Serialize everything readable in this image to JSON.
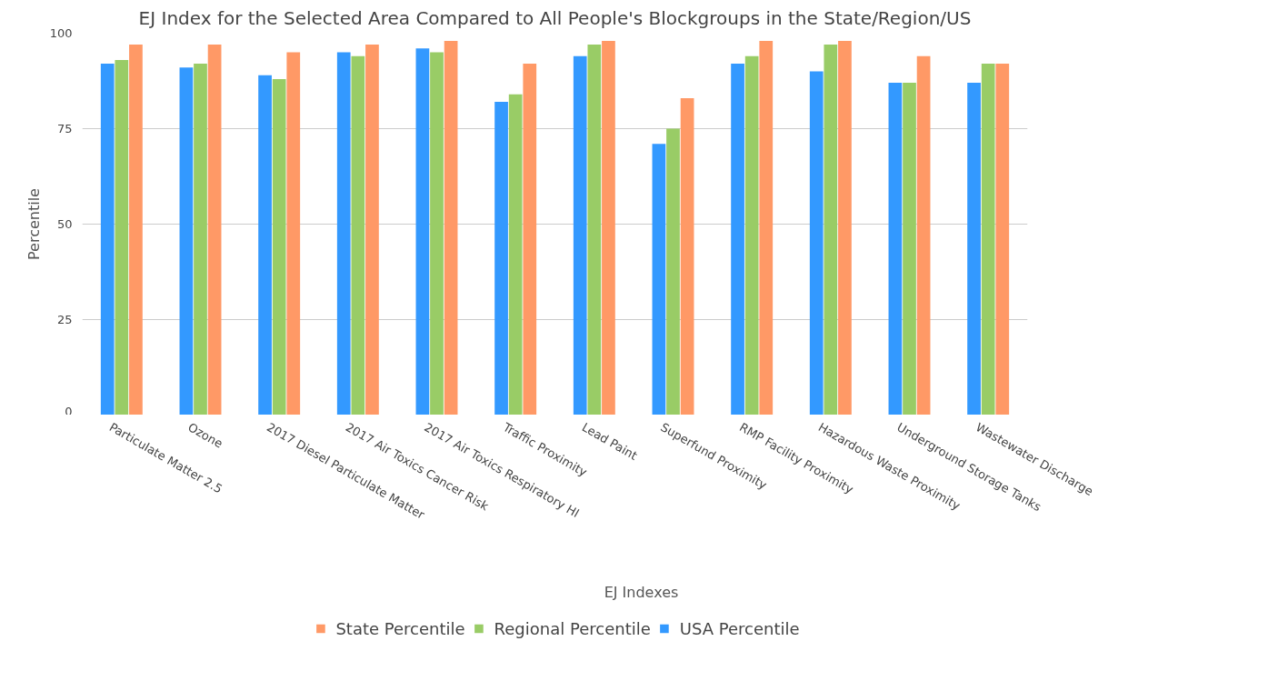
{
  "chart_data": {
    "type": "bar",
    "title": "EJ Index for the Selected Area Compared to All People's Blockgroups in the State/Region/US",
    "xlabel": "EJ Indexes",
    "ylabel": "Percentile",
    "categories": [
      "Particulate Matter 2.5",
      "Ozone",
      "2017 Diesel Particulate Matter",
      "2017 Air Toxics Cancer Risk",
      "2017 Air Toxics Respiratory HI",
      "Traffic Proximity",
      "Lead Paint",
      "Superfund Proximity",
      "RMP Facility Proximity",
      "Hazardous Waste Proximity",
      "Underground Storage Tanks",
      "Wastewater Discharge"
    ],
    "series": [
      {
        "name": "USA Percentile",
        "color": "#3399ff",
        "values": [
          92,
          91,
          89,
          95,
          96,
          82,
          94,
          71,
          92,
          90,
          87,
          87
        ]
      },
      {
        "name": "Regional Percentile",
        "color": "#99cc66",
        "values": [
          93,
          92,
          88,
          94,
          95,
          84,
          97,
          75,
          94,
          97,
          87,
          92
        ]
      },
      {
        "name": "State Percentile",
        "color": "#ff9966",
        "values": [
          97,
          97,
          95,
          97,
          98,
          92,
          98,
          83,
          98,
          98,
          94,
          92
        ]
      }
    ],
    "ylim": [
      0,
      100
    ],
    "yticks": [
      0,
      25,
      50,
      75,
      100
    ],
    "grid": "y",
    "legend": "bottom"
  }
}
